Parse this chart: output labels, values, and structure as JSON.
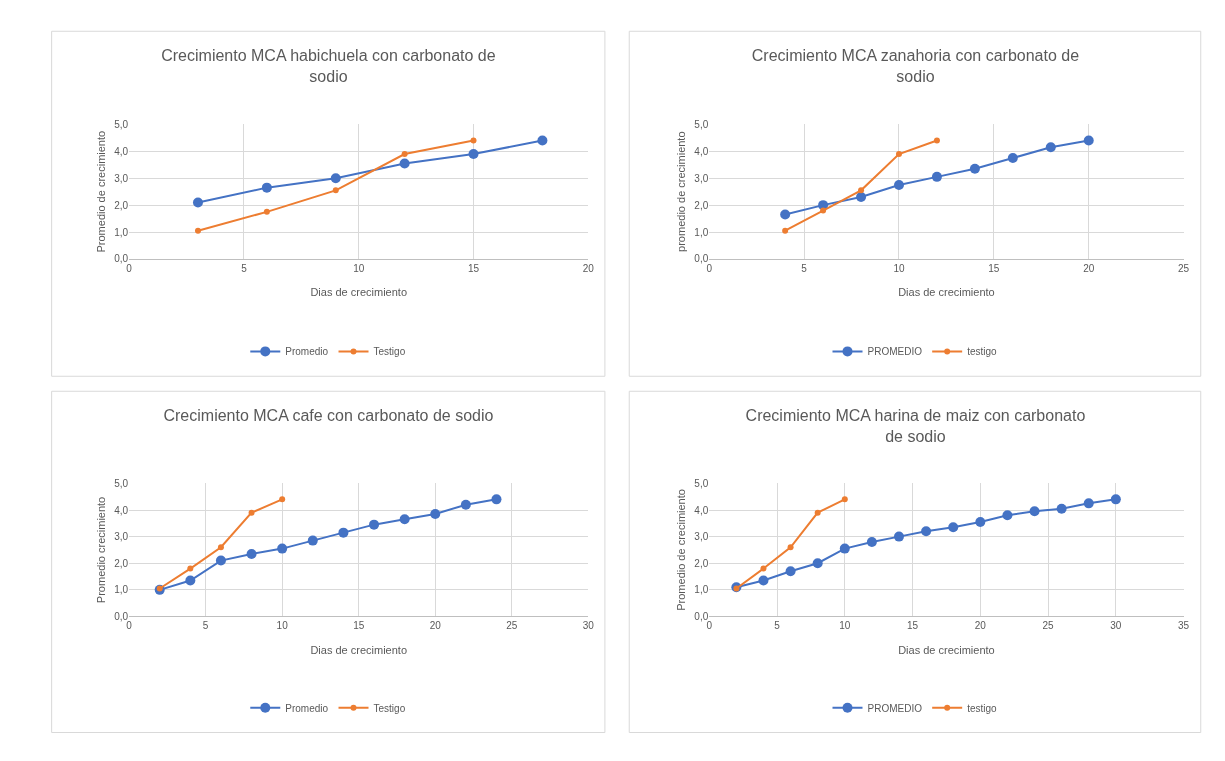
{
  "chart_data": [
    {
      "type": "line",
      "title": "Crecimiento MCA habichuela con carbonato de sodio",
      "xlabel": "Dias de crecimiento",
      "ylabel": "Promedio de crecimiento",
      "xlim": [
        0,
        20
      ],
      "xticks": [
        0,
        5,
        10,
        15,
        20
      ],
      "ylim": [
        0,
        5
      ],
      "yticks": [
        {
          "value": 0,
          "label": "0,0"
        },
        {
          "value": 1,
          "label": "1,0"
        },
        {
          "value": 2,
          "label": "2,0"
        },
        {
          "value": 3,
          "label": "3,0"
        },
        {
          "value": 4,
          "label": "4,0"
        },
        {
          "value": 5,
          "label": "5,0"
        }
      ],
      "grid": true,
      "legend": "bottom",
      "marker": "circle",
      "line_style": "solid",
      "series": [
        {
          "name": "Promedio",
          "color": "#4472c4",
          "x": [
            3,
            6,
            9,
            12,
            15,
            18
          ],
          "values": [
            2.1,
            2.65,
            3.0,
            3.55,
            3.9,
            4.4
          ]
        },
        {
          "name": "Testigo",
          "color": "#ed7d31",
          "x": [
            3,
            6,
            9,
            12,
            15
          ],
          "values": [
            1.05,
            1.75,
            2.55,
            3.9,
            4.4
          ]
        }
      ]
    },
    {
      "type": "line",
      "title": "Crecimiento MCA zanahoria con carbonato de sodio",
      "xlabel": "Dias de crecimiento",
      "ylabel": "promedio de crecimiento",
      "xlim": [
        0,
        25
      ],
      "xticks": [
        0,
        5,
        10,
        15,
        20,
        25
      ],
      "ylim": [
        0,
        5
      ],
      "yticks": [
        {
          "value": 0,
          "label": "0,0"
        },
        {
          "value": 1,
          "label": "1,0"
        },
        {
          "value": 2,
          "label": "2,0"
        },
        {
          "value": 3,
          "label": "3,0"
        },
        {
          "value": 4,
          "label": "4,0"
        },
        {
          "value": 5,
          "label": "5,0"
        }
      ],
      "grid": true,
      "legend": "bottom",
      "marker": "circle",
      "line_style": "solid",
      "series": [
        {
          "name": "PROMEDIO",
          "color": "#4472c4",
          "x": [
            4,
            6,
            8,
            10,
            12,
            14,
            16,
            18,
            20
          ],
          "values": [
            1.65,
            2.0,
            2.3,
            2.75,
            3.05,
            3.35,
            3.75,
            4.15,
            4.4
          ]
        },
        {
          "name": "testigo",
          "color": "#ed7d31",
          "x": [
            4,
            6,
            8,
            10,
            12
          ],
          "values": [
            1.05,
            1.8,
            2.55,
            3.9,
            4.4
          ]
        }
      ]
    },
    {
      "type": "line",
      "title": "Crecimiento MCA cafe con carbonato de sodio",
      "xlabel": "Dias de crecimiento",
      "ylabel": "Promedio crecimiento",
      "xlim": [
        0,
        30
      ],
      "xticks": [
        0,
        5,
        10,
        15,
        20,
        25,
        30
      ],
      "ylim": [
        0,
        5
      ],
      "yticks": [
        {
          "value": 0,
          "label": "0,0"
        },
        {
          "value": 1,
          "label": "1,0"
        },
        {
          "value": 2,
          "label": "2,0"
        },
        {
          "value": 3,
          "label": "3,0"
        },
        {
          "value": 4,
          "label": "4,0"
        },
        {
          "value": 5,
          "label": "5,0"
        }
      ],
      "grid": true,
      "legend": "bottom",
      "marker": "circle",
      "line_style": "solid",
      "series": [
        {
          "name": "Promedio",
          "color": "#4472c4",
          "x": [
            2,
            4,
            6,
            8,
            10,
            12,
            14,
            16,
            18,
            20,
            22,
            24
          ],
          "values": [
            1.0,
            1.35,
            2.1,
            2.35,
            2.55,
            2.85,
            3.15,
            3.45,
            3.65,
            3.85,
            4.2,
            4.4
          ]
        },
        {
          "name": "Testigo",
          "color": "#ed7d31",
          "x": [
            2,
            4,
            6,
            8,
            10
          ],
          "values": [
            1.05,
            1.8,
            2.6,
            3.9,
            4.4
          ]
        }
      ]
    },
    {
      "type": "line",
      "title": "Crecimiento MCA harina de maiz con carbonato de sodio",
      "xlabel": "Dias de crecimiento",
      "ylabel": "Promedio de crecimiento",
      "xlim": [
        0,
        35
      ],
      "xticks": [
        0,
        5,
        10,
        15,
        20,
        25,
        30,
        35
      ],
      "ylim": [
        0,
        5
      ],
      "yticks": [
        {
          "value": 0,
          "label": "0,0"
        },
        {
          "value": 1,
          "label": "1,0"
        },
        {
          "value": 2,
          "label": "2,0"
        },
        {
          "value": 3,
          "label": "3,0"
        },
        {
          "value": 4,
          "label": "4,0"
        },
        {
          "value": 5,
          "label": "5,0"
        }
      ],
      "grid": true,
      "legend": "bottom",
      "marker": "circle",
      "line_style": "solid",
      "series": [
        {
          "name": "PROMEDIO",
          "color": "#4472c4",
          "x": [
            2,
            4,
            6,
            8,
            10,
            12,
            14,
            16,
            18,
            20,
            22,
            24,
            26,
            28,
            30
          ],
          "values": [
            1.1,
            1.35,
            1.7,
            2.0,
            2.55,
            2.8,
            3.0,
            3.2,
            3.35,
            3.55,
            3.8,
            3.95,
            4.05,
            4.25,
            4.4
          ]
        },
        {
          "name": "testigo",
          "color": "#ed7d31",
          "x": [
            2,
            4,
            6,
            8,
            10
          ],
          "values": [
            1.05,
            1.8,
            2.6,
            3.9,
            4.4
          ]
        }
      ]
    }
  ]
}
